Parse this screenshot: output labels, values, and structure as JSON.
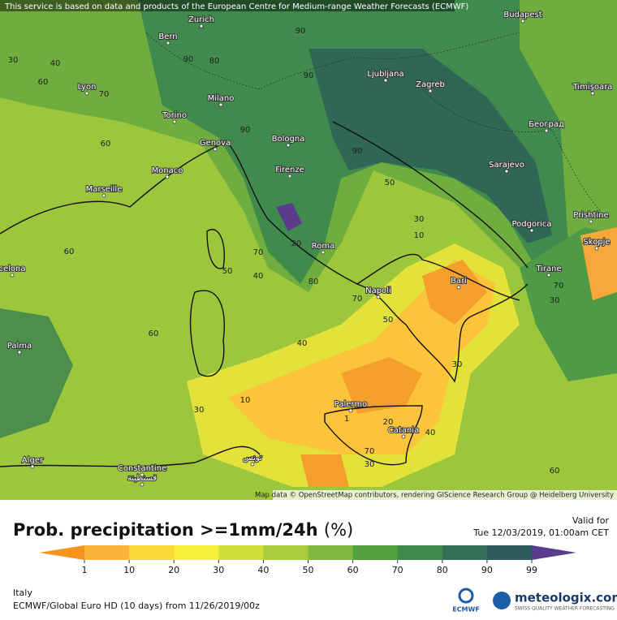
{
  "header": {
    "disclaimer": "This service is based on data and products of the European Centre for Medium-range Weather Forecasts (ECMWF)"
  },
  "map": {
    "cities": [
      "Zurich",
      "Bern",
      "Budapest",
      "Ljubljana",
      "Zagreb",
      "Timişoara",
      "Lyon",
      "Milano",
      "Torino",
      "Београд",
      "Genova",
      "Bologna",
      "Monaco",
      "Firenze",
      "Sarajevo",
      "Marseille",
      "Podgorica",
      "Prishtine",
      "Roma",
      "Skopje",
      "celona",
      "Tirane",
      "Bari",
      "Napoli",
      "Palma",
      "Palermo",
      "Catania",
      "Alger",
      "Constantine",
      "قسنطينة",
      "تونس"
    ],
    "contour_labels": [
      30,
      40,
      60,
      70,
      80,
      90,
      90,
      90,
      60,
      60,
      50,
      40,
      30,
      20,
      10,
      80,
      70,
      70,
      50,
      40,
      50,
      30,
      10,
      1,
      20,
      70,
      30,
      40,
      60,
      30,
      90,
      90,
      70,
      30,
      60
    ],
    "attribution": "Map data © OpenStreetMap contributors, rendering GIScience Research Group @ Heidelberg University"
  },
  "legend": {
    "title": "Prob. precipitation >=1mm/24h",
    "unit": "(%)",
    "valid_label": "Valid for",
    "valid_time": "Tue 12/03/2019, 01:00am CET",
    "ticks": [
      1,
      10,
      20,
      30,
      40,
      50,
      60,
      70,
      80,
      90,
      99
    ],
    "colors": [
      "#f7941d",
      "#fbb33b",
      "#fdd83a",
      "#f6ef3a",
      "#cfe03b",
      "#a8cc3b",
      "#80b83f",
      "#52a040",
      "#3f8a4c",
      "#326f55",
      "#2e5c5c",
      "#5b3c8c"
    ]
  },
  "footer": {
    "region": "Italy",
    "model": "ECMWF/Global Euro HD (10 days) from 11/26/2019/00z",
    "ecmwf": "ECMWF",
    "brand": "meteologix.com",
    "slogan": "SWISS QUALITY WEATHER FORECASTING"
  }
}
